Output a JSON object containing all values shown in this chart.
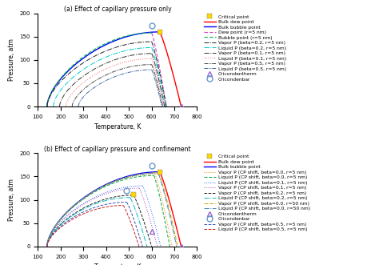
{
  "title_a": "(a) Effect of capillary pressure only",
  "title_b": "(b) Effect of capillary pressure and confinement",
  "xlabel": "Temperature, K",
  "ylabel": "Pressure, atm",
  "xlim": [
    100,
    800
  ],
  "ylim": [
    0,
    200
  ],
  "xticks": [
    100,
    200,
    300,
    400,
    500,
    600,
    700,
    800
  ],
  "yticks": [
    0,
    50,
    100,
    150,
    200
  ],
  "bulk_dew_color": "#FF0000",
  "bulk_bubble_color": "#0000FF",
  "dew_5nm_color": "#CC44CC",
  "bubble_5nm_color": "#00BB44",
  "vp02_color": "#222222",
  "lp02_color": "#00CCCC",
  "vp01_color": "#333333",
  "lp01_color": "#FF6666",
  "vp05_color": "#444444",
  "lp05_color": "#4466AA",
  "cricondentherm_color": "#9966CC",
  "cricondenbar_color": "#6699CC",
  "critical_color": "#FFD700",
  "orange_color": "#FF8800",
  "green_color": "#00AA44",
  "blue_dotted_color": "#3366FF",
  "purple_dotted_color": "#AA44AA",
  "black_dash_color": "#222222",
  "cyan_dashdot_color": "#00BBBB",
  "yellow_dash_color": "#CCAA00",
  "steelblue_dashdot_color": "#4488BB",
  "blue_dash_b_color": "#3355BB",
  "red_dash_b_color": "#CC2222"
}
